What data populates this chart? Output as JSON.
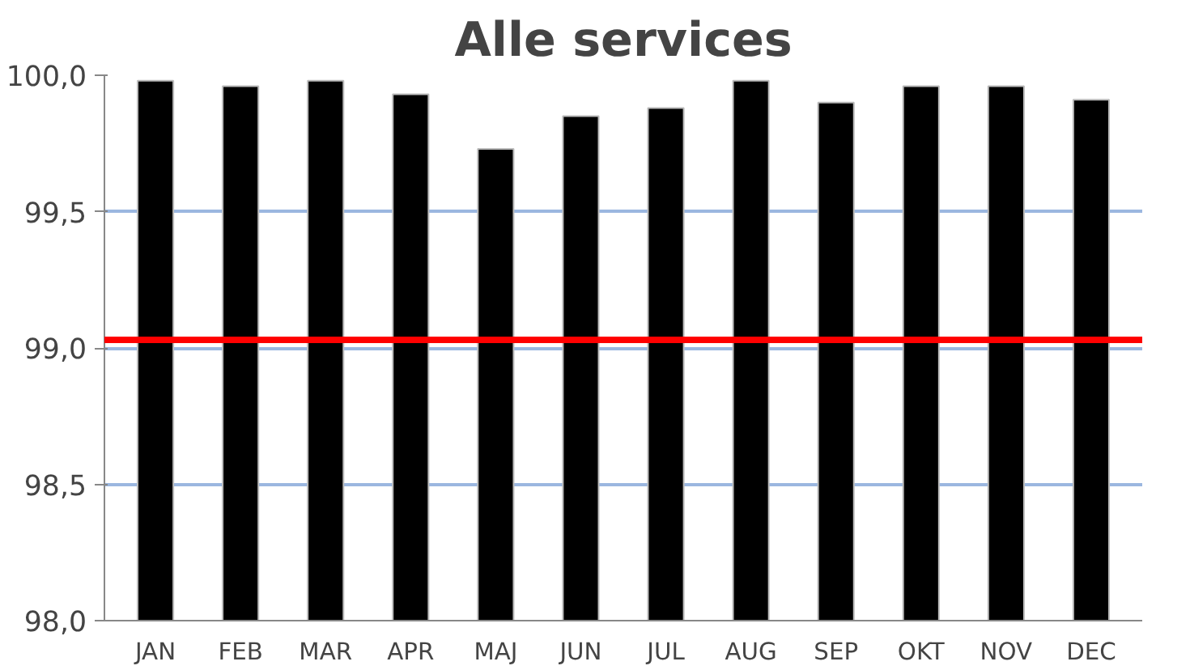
{
  "chart_data": {
    "type": "bar",
    "title": "Alle services",
    "categories": [
      "JAN",
      "FEB",
      "MAR",
      "APR",
      "MAJ",
      "JUN",
      "JUL",
      "AUG",
      "SEP",
      "OKT",
      "NOV",
      "DEC"
    ],
    "values": [
      99.98,
      99.96,
      99.98,
      99.93,
      99.73,
      99.85,
      99.88,
      99.98,
      99.9,
      99.96,
      99.96,
      99.91
    ],
    "color": "#000000",
    "ylim": [
      98.0,
      100.0
    ],
    "yticks": [
      {
        "value": 98.0,
        "label": "98,0"
      },
      {
        "value": 98.5,
        "label": "98,5"
      },
      {
        "value": 99.0,
        "label": "99,0"
      },
      {
        "value": 99.5,
        "label": "99,5"
      },
      {
        "value": 100.0,
        "label": "100,0"
      }
    ],
    "grid": "y",
    "ref_lines": [
      {
        "axis": "y",
        "value": 99.03,
        "label": null,
        "color": "#ff0000"
      }
    ]
  }
}
